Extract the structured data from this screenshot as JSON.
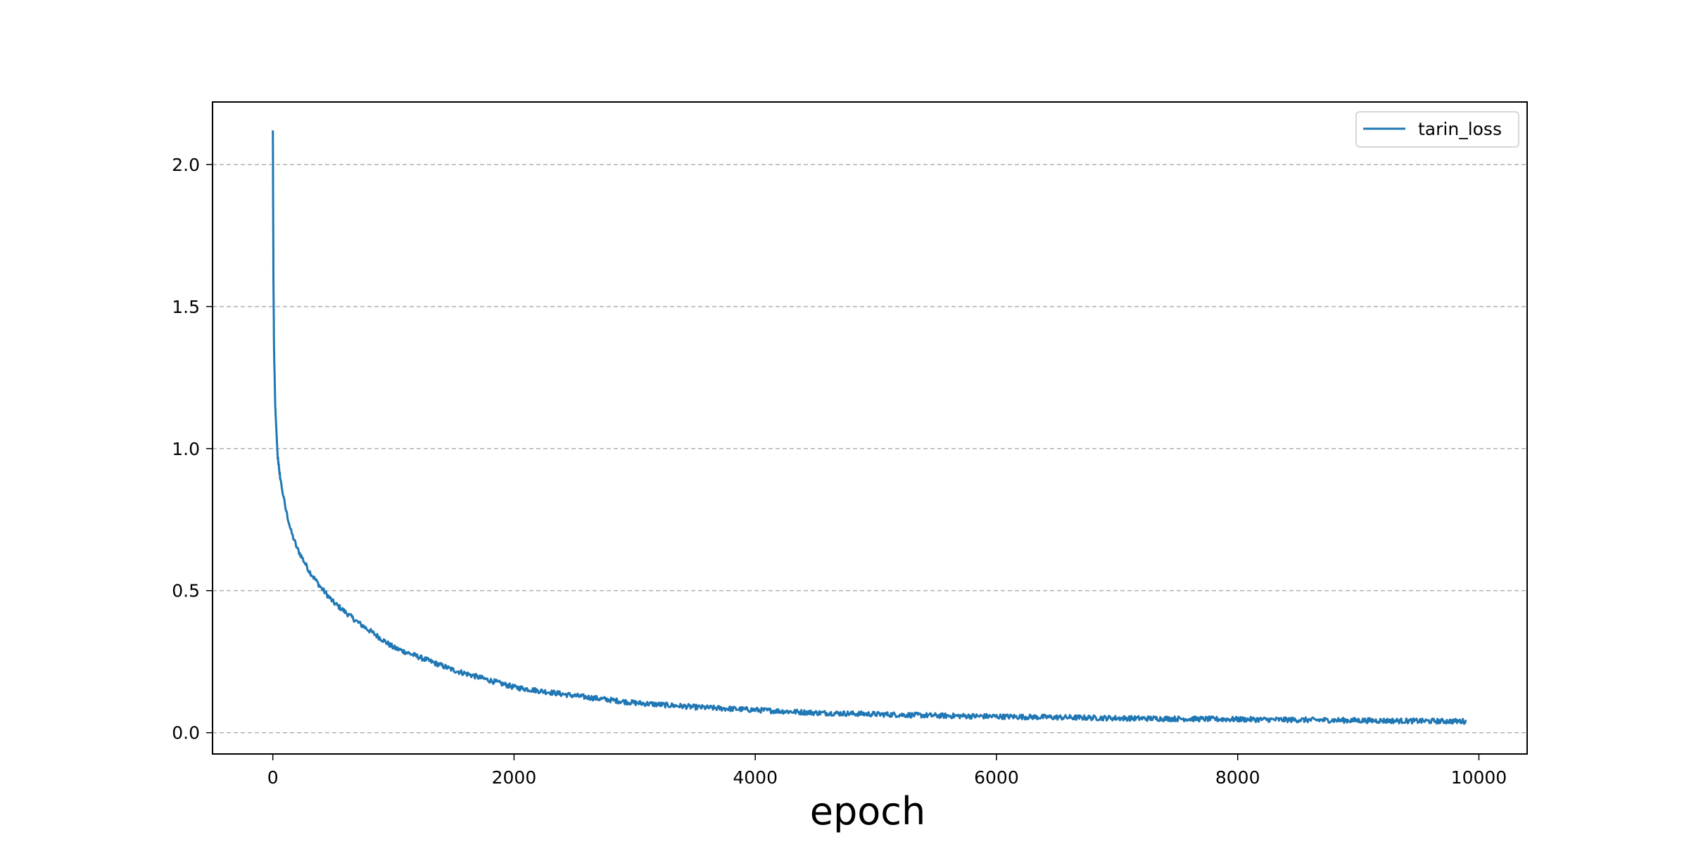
{
  "chart_data": {
    "type": "line",
    "title": "",
    "xlabel": "epoch",
    "ylabel": "",
    "xlim": [
      -500,
      10400
    ],
    "ylim": [
      -0.075,
      2.22
    ],
    "xticks": [
      0,
      2000,
      4000,
      6000,
      8000,
      10000
    ],
    "xtick_labels": [
      "0",
      "2000",
      "4000",
      "6000",
      "8000",
      "10000"
    ],
    "yticks": [
      0.0,
      0.5,
      1.0,
      1.5,
      2.0
    ],
    "ytick_labels": [
      "0.0",
      "0.5",
      "1.0",
      "1.5",
      "2.0"
    ],
    "grid": {
      "axis": "y",
      "style": "dashed",
      "color": "#b0b0b0"
    },
    "legend": {
      "placement": "top-right"
    },
    "series": [
      {
        "name": "tarin_loss",
        "color": "#1f77b4",
        "x": [
          0,
          5,
          10,
          20,
          40,
          60,
          100,
          150,
          200,
          300,
          400,
          500,
          700,
          1000,
          1500,
          2000,
          2500,
          3000,
          3500,
          4000,
          4500,
          5000,
          5500,
          6000,
          6500,
          7000,
          7500,
          8000,
          8500,
          9000,
          9500,
          9900
        ],
        "values": [
          2.12,
          1.6,
          1.35,
          1.15,
          0.97,
          0.9,
          0.8,
          0.71,
          0.65,
          0.57,
          0.51,
          0.46,
          0.39,
          0.3,
          0.22,
          0.16,
          0.13,
          0.105,
          0.09,
          0.08,
          0.07,
          0.065,
          0.06,
          0.057,
          0.054,
          0.051,
          0.049,
          0.047,
          0.045,
          0.043,
          0.041,
          0.04
        ]
      }
    ]
  }
}
